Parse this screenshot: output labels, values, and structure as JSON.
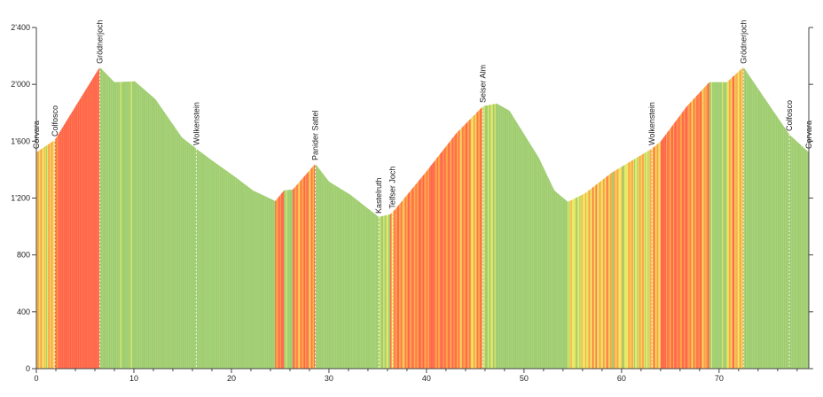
{
  "chart_data": {
    "type": "area",
    "title": "",
    "xlabel": "",
    "ylabel": "",
    "xlim": [
      0,
      79.2
    ],
    "ylim": [
      0,
      2400
    ],
    "grid": false,
    "x_ticks": [
      0,
      10,
      20,
      30,
      40,
      50,
      60,
      70
    ],
    "x_tick_labels": [
      "0",
      "10",
      "20",
      "30",
      "40",
      "50",
      "60",
      "70"
    ],
    "y_ticks": [
      0,
      400,
      800,
      1200,
      1600,
      2000,
      2400
    ],
    "y_tick_labels": [
      "0",
      "400",
      "800",
      "1'200",
      "1'600",
      "2'000",
      "2'400"
    ],
    "profile": {
      "x": [
        0,
        1.9,
        6.5,
        8.0,
        10.1,
        12.2,
        14.9,
        16.4,
        18.1,
        20.4,
        22.2,
        24.5,
        25.4,
        26.3,
        28.6,
        30.0,
        32.2,
        35.1,
        36.3,
        36.9,
        39.9,
        43.1,
        45.8,
        47.2,
        48.5,
        51.5,
        53.1,
        54.5,
        56.3,
        59.0,
        63.1,
        64.0,
        66.7,
        69.0,
        70.8,
        72.5,
        74.9,
        77.2,
        79.2
      ],
      "y": [
        1520,
        1608,
        2120,
        2014,
        2020,
        1895,
        1627,
        1546,
        1459,
        1347,
        1253,
        1178,
        1253,
        1259,
        1440,
        1315,
        1222,
        1066,
        1085,
        1128,
        1378,
        1658,
        1845,
        1864,
        1814,
        1484,
        1253,
        1172,
        1234,
        1378,
        1546,
        1596,
        1845,
        2014,
        2014,
        2120,
        1877,
        1646,
        1521
      ]
    },
    "waypoints": [
      {
        "km": 0,
        "name": "Corvara"
      },
      {
        "km": 1.9,
        "name": "Colfosco"
      },
      {
        "km": 6.5,
        "name": "Grödnerjoch"
      },
      {
        "km": 16.4,
        "name": "Wolkenstein"
      },
      {
        "km": 28.6,
        "name": "Panider Sattel"
      },
      {
        "km": 35.1,
        "name": "Kastelruth"
      },
      {
        "km": 36.5,
        "name": "Telfser Joch"
      },
      {
        "km": 45.8,
        "name": "Seiser Alm"
      },
      {
        "km": 63.1,
        "name": "Wolkenstein"
      },
      {
        "km": 72.5,
        "name": "Grödnerjoch"
      },
      {
        "km": 77.2,
        "name": "Colfosco"
      },
      {
        "km": 79.2,
        "name": "Corvara"
      }
    ],
    "gradient_colors": {
      "flat_or_descent": "#9dcc6b",
      "gentle": "#e9e85c",
      "moderate": "#ffa040",
      "steep": "#ff6342"
    }
  }
}
